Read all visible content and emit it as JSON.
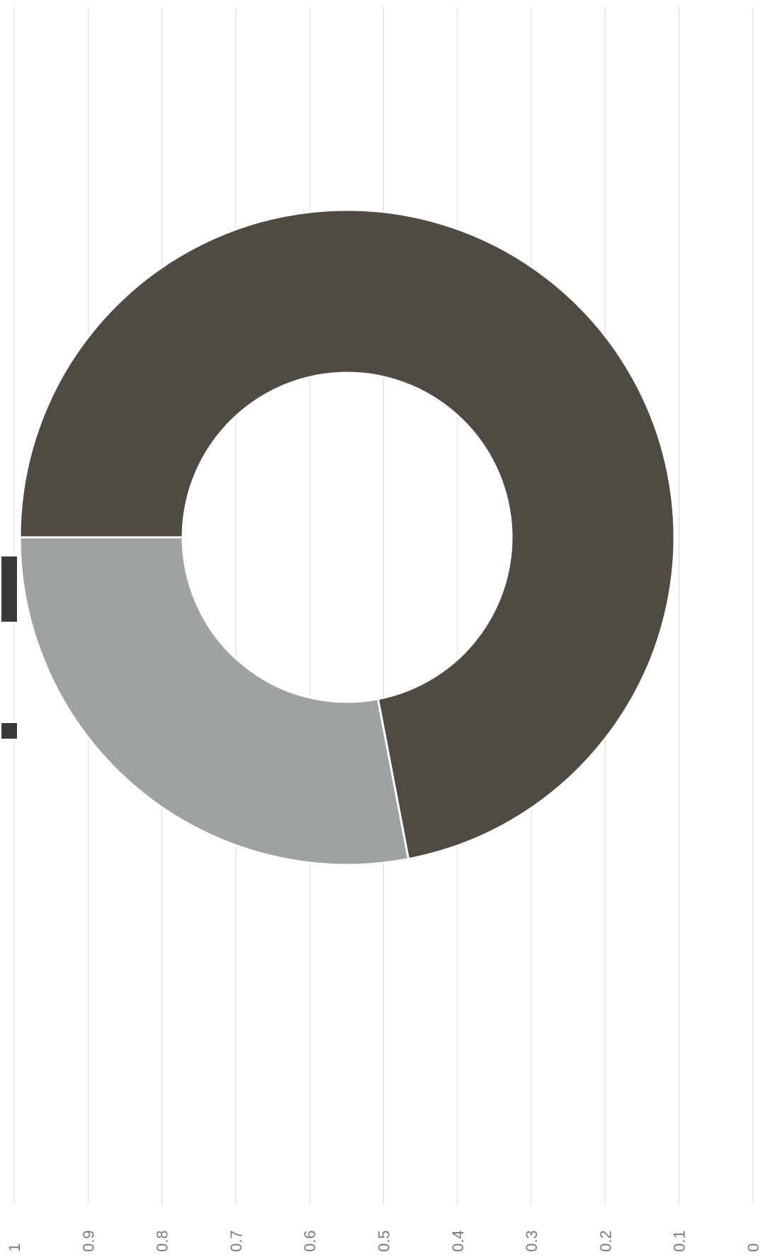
{
  "chart_data": {
    "type": "pie",
    "variant": "donut",
    "orientation": "rotated-90-cw",
    "slices": [
      {
        "value": 0.72,
        "color": "#4f4a44"
      },
      {
        "value": 0.28,
        "color": "#9ea2a3"
      }
    ],
    "value_axis": {
      "ticks": [
        "0",
        "0.1",
        "0.2",
        "0.3",
        "0.4",
        "0.5",
        "0.6",
        "0.7",
        "0.8",
        "0.9",
        "1"
      ],
      "range": [
        0,
        1
      ]
    },
    "grid": true,
    "legend": {
      "position": "top",
      "entries": []
    },
    "colors": {
      "dark_slice": "#4f4a44",
      "light_slice": "#9ea2a3",
      "grid": "#d9d9d9",
      "tick_text": "#7a7a7a"
    }
  }
}
